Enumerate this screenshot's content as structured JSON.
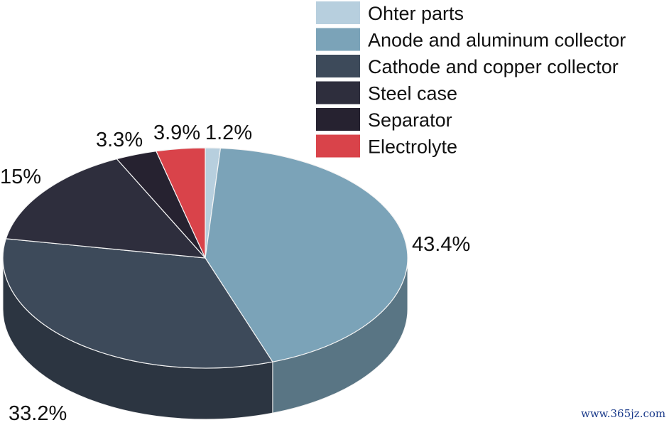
{
  "chart_data": {
    "type": "pie",
    "style": "3d",
    "title": "",
    "slices": [
      {
        "label": "Ohter parts",
        "value": 1.2,
        "value_label": "1.2%",
        "color": "#b7cfde"
      },
      {
        "label": "Anode and aluminum collector",
        "value": 43.4,
        "value_label": "43.4%",
        "color": "#7ba3b8"
      },
      {
        "label": "Cathode and copper collector",
        "value": 33.2,
        "value_label": "33.2%",
        "color": "#3d4a5a"
      },
      {
        "label": "Steel case",
        "value": 15,
        "value_label": "15%",
        "color": "#2e2e3d"
      },
      {
        "label": "Separator",
        "value": 3.3,
        "value_label": "3.3%",
        "color": "#262230"
      },
      {
        "label": "Electrolyte",
        "value": 3.9,
        "value_label": "3.9%",
        "color": "#d9434a"
      }
    ],
    "legend_position": "top-right"
  },
  "watermark": "www.365jz.com"
}
